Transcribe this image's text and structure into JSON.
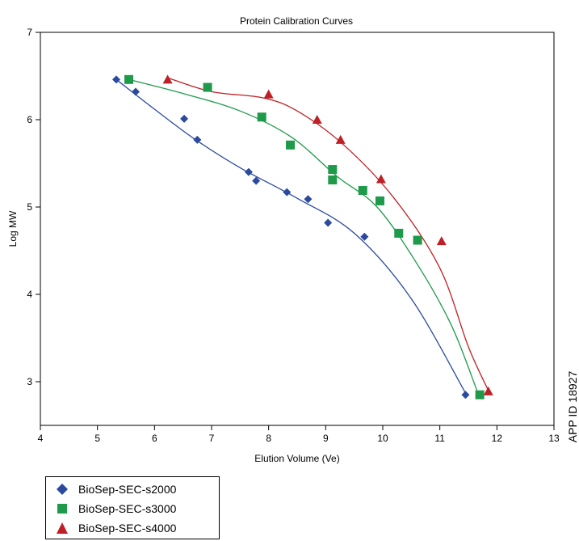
{
  "chart_data": {
    "type": "scatter",
    "title": "Protein Calibration Curves",
    "xlabel": "Elution Volume (Ve)",
    "ylabel": "Log MW",
    "xlim": [
      4,
      13
    ],
    "ylim": [
      2.5,
      7
    ],
    "x_ticks": [
      4,
      5,
      6,
      7,
      8,
      9,
      10,
      11,
      12,
      13
    ],
    "y_ticks": [
      3,
      4,
      5,
      6,
      7
    ],
    "grid": false,
    "legend_position": "bottom-left",
    "side_note": "APP ID 18927",
    "series": [
      {
        "name": "BioSep-SEC-s2000",
        "marker": "diamond",
        "color": "#2b4a9e",
        "x": [
          5.33,
          5.67,
          6.52,
          6.75,
          7.65,
          7.78,
          8.32,
          8.69,
          9.04,
          9.68,
          11.45
        ],
        "y": [
          6.46,
          6.32,
          6.01,
          5.77,
          5.4,
          5.3,
          5.17,
          5.09,
          4.82,
          4.66,
          2.85
        ],
        "curve": [
          [
            5.33,
            6.46
          ],
          [
            6.0,
            6.12
          ],
          [
            6.7,
            5.78
          ],
          [
            7.5,
            5.45
          ],
          [
            8.5,
            5.1
          ],
          [
            9.5,
            4.7
          ],
          [
            10.5,
            3.95
          ],
          [
            11.45,
            2.87
          ]
        ]
      },
      {
        "name": "BioSep-SEC-s3000",
        "marker": "square",
        "color": "#1e9a4a",
        "x": [
          5.55,
          6.93,
          7.88,
          8.38,
          9.12,
          9.12,
          9.65,
          9.95,
          10.28,
          10.61,
          11.7
        ],
        "y": [
          6.46,
          6.37,
          6.03,
          5.71,
          5.43,
          5.31,
          5.19,
          5.07,
          4.7,
          4.62,
          2.85
        ],
        "curve": [
          [
            5.55,
            6.46
          ],
          [
            6.5,
            6.3
          ],
          [
            7.5,
            6.1
          ],
          [
            8.4,
            5.8
          ],
          [
            9.2,
            5.35
          ],
          [
            9.9,
            5.0
          ],
          [
            10.6,
            4.35
          ],
          [
            11.2,
            3.65
          ],
          [
            11.65,
            2.9
          ]
        ]
      },
      {
        "name": "BioSep-SEC-s4000",
        "marker": "triangle",
        "color": "#bf2026",
        "x": [
          6.23,
          8.0,
          8.85,
          9.26,
          9.97,
          11.03,
          11.85
        ],
        "y": [
          6.46,
          6.29,
          6.0,
          5.77,
          5.32,
          4.61,
          2.89
        ],
        "curve": [
          [
            6.23,
            6.48
          ],
          [
            7.0,
            6.32
          ],
          [
            7.9,
            6.25
          ],
          [
            8.5,
            6.1
          ],
          [
            9.3,
            5.72
          ],
          [
            10.2,
            5.1
          ],
          [
            11.0,
            4.3
          ],
          [
            11.5,
            3.4
          ],
          [
            11.85,
            2.9
          ]
        ]
      }
    ]
  }
}
